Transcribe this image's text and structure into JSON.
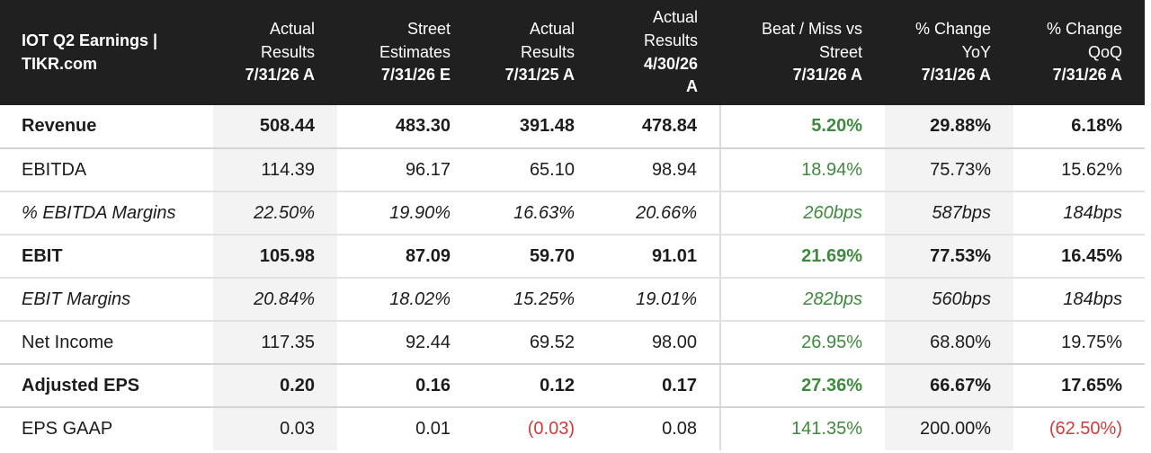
{
  "header": {
    "title_line1": "IOT Q2 Earnings |",
    "title_line2": "TIKR.com",
    "columns": [
      {
        "line1": "Actual",
        "line2": "Results",
        "date": "7/31/26 A"
      },
      {
        "line1": "Street",
        "line2": "Estimates",
        "date": "7/31/26 E"
      },
      {
        "line1": "Actual",
        "line2": "Results",
        "date": "7/31/25 A"
      },
      {
        "line1": "Actual",
        "line2": "Results",
        "date1": "4/30/26",
        "date2": "A"
      },
      {
        "line1": "Beat / Miss vs",
        "line2": "Street",
        "date": "7/31/26 A"
      },
      {
        "line1": "% Change",
        "line2": "YoY",
        "date": "7/31/26 A"
      },
      {
        "line1": "% Change",
        "line2": "QoQ",
        "date": "7/31/26 A"
      }
    ]
  },
  "rows": [
    {
      "label": "Revenue",
      "values": [
        "508.44",
        "483.30",
        "391.48",
        "478.84",
        "5.20%",
        "29.88%",
        "6.18%"
      ]
    },
    {
      "label": "EBITDA",
      "values": [
        "114.39",
        "96.17",
        "65.10",
        "98.94",
        "18.94%",
        "75.73%",
        "15.62%"
      ]
    },
    {
      "label": "% EBITDA Margins",
      "values": [
        "22.50%",
        "19.90%",
        "16.63%",
        "20.66%",
        "260bps",
        "587bps",
        "184bps"
      ]
    },
    {
      "label": "EBIT",
      "values": [
        "105.98",
        "87.09",
        "59.70",
        "91.01",
        "21.69%",
        "77.53%",
        "16.45%"
      ]
    },
    {
      "label": "EBIT Margins",
      "values": [
        "20.84%",
        "18.02%",
        "15.25%",
        "19.01%",
        "282bps",
        "560bps",
        "184bps"
      ]
    },
    {
      "label": "Net Income",
      "values": [
        "117.35",
        "92.44",
        "69.52",
        "98.00",
        "26.95%",
        "68.80%",
        "19.75%"
      ]
    },
    {
      "label": "Adjusted EPS",
      "values": [
        "0.20",
        "0.16",
        "0.12",
        "0.17",
        "27.36%",
        "66.67%",
        "17.65%"
      ]
    },
    {
      "label": "EPS GAAP",
      "values": [
        "0.03",
        "0.01",
        "(0.03)",
        "0.08",
        "141.35%",
        "200.00%",
        "(62.50%)"
      ]
    }
  ],
  "colors": {
    "header_bg": "#202020",
    "positive": "#3e8a3e",
    "negative": "#d23b3b",
    "shade": "#f3f3f3"
  }
}
